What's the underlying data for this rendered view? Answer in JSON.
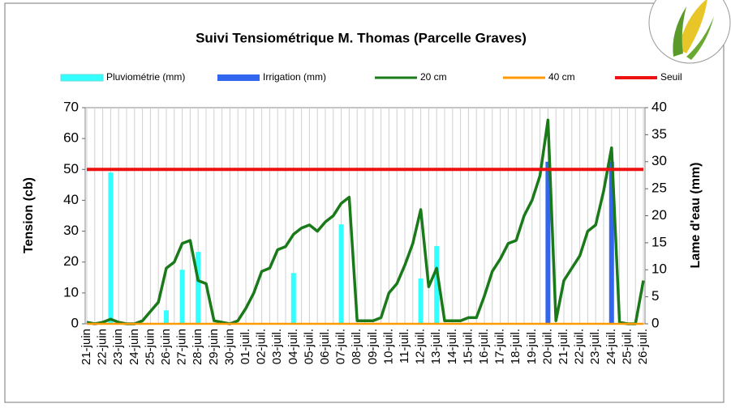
{
  "chart_data": {
    "type": "combo",
    "title": "Suivi Tensiométrique M. Thomas (Parcelle Graves)",
    "ylabel": "Tension (cb)",
    "y2label": "Lame d'eau (mm)",
    "categories": [
      "21-juin",
      null,
      "22-juin",
      null,
      "23-juin",
      null,
      "24-juin",
      null,
      "25-juin",
      null,
      "26-juin",
      null,
      "27-juin",
      null,
      "28-juin",
      null,
      "29-juin",
      null,
      "30-juin",
      null,
      "01-juil.",
      null,
      "02-juil.",
      null,
      "03-juil.",
      null,
      "04-juil.",
      null,
      "05-juil.",
      null,
      "06-juil.",
      null,
      "07-juil.",
      null,
      "08-juil.",
      null,
      "09-juil.",
      null,
      "10-juil.",
      null,
      "11-juil.",
      null,
      "12-juil.",
      null,
      "13-juil.",
      null,
      "14-juil.",
      null,
      "15-juil.",
      null,
      "16-juil.",
      null,
      "17-juil.",
      null,
      "18-juil.",
      null,
      "19-juil.",
      null,
      "20-juil.",
      null,
      "21-juil.",
      null,
      "22-juil.",
      null,
      "23-juil.",
      null,
      "24-juil.",
      null,
      "25-juil.",
      null,
      "26-juil."
    ],
    "ylim": [
      0,
      70
    ],
    "yticks": [
      0,
      10,
      20,
      30,
      40,
      50,
      60,
      70
    ],
    "y2lim": [
      0,
      40
    ],
    "y2ticks": [
      0,
      5,
      10,
      15,
      20,
      25,
      30,
      35,
      40
    ],
    "grid": true,
    "legend": "top",
    "series": [
      {
        "name": "Pluviométrie (mm)",
        "type": "bar",
        "axis": "y2",
        "color": "#33ffff",
        "values": [
          null,
          null,
          null,
          28,
          null,
          null,
          null,
          null,
          null,
          null,
          2.5,
          null,
          10,
          null,
          13.3,
          null,
          null,
          null,
          null,
          null,
          null,
          null,
          null,
          null,
          null,
          null,
          9.4,
          null,
          null,
          null,
          null,
          null,
          18.4,
          null,
          null,
          null,
          null,
          null,
          null,
          null,
          null,
          null,
          8.4,
          null,
          14.4,
          null,
          null,
          null,
          null,
          null,
          null,
          null,
          null,
          null,
          null,
          null,
          null,
          null,
          null,
          null,
          null,
          null,
          null,
          null,
          null,
          null,
          null,
          null,
          null,
          null,
          null
        ]
      },
      {
        "name": "Irrigation (mm)",
        "type": "bar",
        "axis": "y2",
        "color": "#3366ee",
        "values": [
          null,
          null,
          null,
          null,
          null,
          null,
          null,
          null,
          null,
          null,
          null,
          null,
          null,
          null,
          null,
          null,
          null,
          null,
          null,
          null,
          null,
          null,
          null,
          null,
          null,
          null,
          null,
          null,
          null,
          null,
          null,
          null,
          null,
          null,
          null,
          null,
          null,
          null,
          null,
          null,
          null,
          null,
          null,
          null,
          null,
          null,
          null,
          null,
          null,
          null,
          null,
          null,
          null,
          null,
          null,
          null,
          null,
          null,
          30,
          null,
          null,
          null,
          null,
          null,
          null,
          null,
          30,
          null,
          null,
          null,
          null
        ]
      },
      {
        "name": "20 cm",
        "type": "line",
        "color": "#1a7a1a",
        "values": [
          0.5,
          0,
          0.5,
          1.5,
          0.5,
          0,
          0,
          1,
          4,
          7,
          18,
          20,
          26,
          27,
          14,
          13,
          1,
          0.5,
          0,
          1,
          5,
          10,
          17,
          18,
          24,
          25,
          29,
          31,
          32,
          30,
          33,
          35,
          39,
          41,
          1,
          1,
          1,
          2,
          10,
          13,
          19,
          26,
          37,
          12,
          18,
          1,
          1,
          1,
          2,
          2,
          9,
          17,
          21,
          26,
          27,
          35,
          40,
          48,
          66,
          1,
          14,
          18,
          22,
          30,
          32,
          43,
          57,
          0.5,
          0,
          0,
          14
        ]
      },
      {
        "name": "40 cm",
        "type": "line",
        "color": "#ff9900",
        "values": [
          0,
          0,
          0,
          0,
          0,
          0,
          0,
          0,
          0,
          0,
          0,
          0,
          0,
          0,
          0,
          0,
          0,
          0,
          0,
          0,
          0,
          0,
          0,
          0,
          0,
          0,
          0,
          0,
          0,
          0,
          0,
          0,
          0,
          0,
          0,
          0,
          0,
          0,
          0,
          0,
          0,
          0,
          0,
          0,
          0,
          0,
          0,
          0,
          0,
          0,
          0,
          0,
          0,
          0,
          0,
          0,
          0,
          0,
          0,
          0,
          0,
          0,
          0,
          0,
          0,
          0,
          0,
          0,
          0,
          0,
          0
        ]
      },
      {
        "name": "Seuil",
        "type": "line",
        "color": "#ee1111",
        "values": [
          50,
          50,
          50,
          50,
          50,
          50,
          50,
          50,
          50,
          50,
          50,
          50,
          50,
          50,
          50,
          50,
          50,
          50,
          50,
          50,
          50,
          50,
          50,
          50,
          50,
          50,
          50,
          50,
          50,
          50,
          50,
          50,
          50,
          50,
          50,
          50,
          50,
          50,
          50,
          50,
          50,
          50,
          50,
          50,
          50,
          50,
          50,
          50,
          50,
          50,
          50,
          50,
          50,
          50,
          50,
          50,
          50,
          50,
          50,
          50,
          50,
          50,
          50,
          50,
          50,
          50,
          50,
          50,
          50,
          50,
          50
        ]
      }
    ]
  }
}
